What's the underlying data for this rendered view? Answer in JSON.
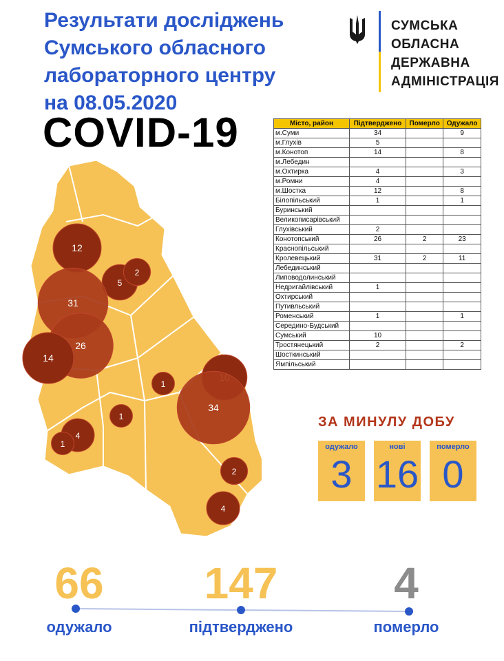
{
  "header": {
    "title_lines": [
      "Результати досліджень",
      "Сумського обласного",
      "лабораторного центру"
    ],
    "date_prefix": "на",
    "date": "08.05.2020",
    "covid": "COVID-19"
  },
  "administration": {
    "lines": [
      "СУМСЬКА",
      "ОБЛАСНА",
      "ДЕРЖАВНА",
      "АДМІНІСТРАЦІЯ"
    ],
    "colors": {
      "blue": "#2a57c8",
      "yellow": "#f5c400"
    }
  },
  "table": {
    "headers": [
      "Місто, район",
      "Підтверджено",
      "Померло",
      "Одужало"
    ],
    "rows": [
      [
        "м.Суми",
        "34",
        "",
        "9"
      ],
      [
        "м.Глухів",
        "5",
        "",
        ""
      ],
      [
        "м.Конотоп",
        "14",
        "",
        "8"
      ],
      [
        "м.Лебедин",
        "",
        "",
        ""
      ],
      [
        "м.Охтирка",
        "4",
        "",
        "3"
      ],
      [
        "м.Ромни",
        "4",
        "",
        ""
      ],
      [
        "м.Шостка",
        "12",
        "",
        "8"
      ],
      [
        "Білопільський",
        "1",
        "",
        "1"
      ],
      [
        "Буринський",
        "",
        "",
        ""
      ],
      [
        "Великописарівський",
        "",
        "",
        ""
      ],
      [
        "Глухівський",
        "2",
        "",
        ""
      ],
      [
        "Конотопський",
        "26",
        "2",
        "23"
      ],
      [
        "Краснопільський",
        "",
        "",
        ""
      ],
      [
        "Кролевецький",
        "31",
        "2",
        "11"
      ],
      [
        "Лебединський",
        "",
        "",
        ""
      ],
      [
        "Липоводолинський",
        "",
        "",
        ""
      ],
      [
        "Недригайлівський",
        "1",
        "",
        ""
      ],
      [
        "Охтирський",
        "",
        "",
        ""
      ],
      [
        "Путивльський",
        "",
        "",
        ""
      ],
      [
        "Роменський",
        "1",
        "",
        "1"
      ],
      [
        "Середино-Будський",
        "",
        "",
        ""
      ],
      [
        "Сумський",
        "10",
        "",
        ""
      ],
      [
        "Тростянецький",
        "2",
        "",
        "2"
      ],
      [
        "Шосткинський",
        "",
        "",
        ""
      ],
      [
        "Ямпільський",
        "",
        "",
        ""
      ]
    ]
  },
  "chart_data": {
    "type": "bubble-map",
    "colors": {
      "region_fill": "#f6c256",
      "region_border": "#ffffff",
      "bubble": "#8e2a10",
      "bubble_light": "#a83a1a"
    },
    "bubbles": [
      {
        "label": "12",
        "value": 12
      },
      {
        "label": "5",
        "value": 5
      },
      {
        "label": "2",
        "value": 2
      },
      {
        "label": "31",
        "value": 31
      },
      {
        "label": "26",
        "value": 26
      },
      {
        "label": "14",
        "value": 14
      },
      {
        "label": "1",
        "value": 1
      },
      {
        "label": "10",
        "value": 10
      },
      {
        "label": "34",
        "value": 34
      },
      {
        "label": "1",
        "value": 1
      },
      {
        "label": "4",
        "value": 4
      },
      {
        "label": "1",
        "value": 1
      },
      {
        "label": "2",
        "value": 2
      },
      {
        "label": "4",
        "value": 4
      }
    ]
  },
  "daily": {
    "title": "ЗА МИНУЛУ ДОБУ",
    "items": [
      {
        "label": "одужало",
        "value": "3"
      },
      {
        "label": "нові",
        "value": "16"
      },
      {
        "label": "померло",
        "value": "0"
      }
    ]
  },
  "totals": [
    {
      "value": "66",
      "label": "одужало",
      "color": "#f6c256"
    },
    {
      "value": "147",
      "label": "підтверджено",
      "color": "#f6c256"
    },
    {
      "value": "4",
      "label": "померло",
      "color": "#8c8c8c"
    }
  ]
}
